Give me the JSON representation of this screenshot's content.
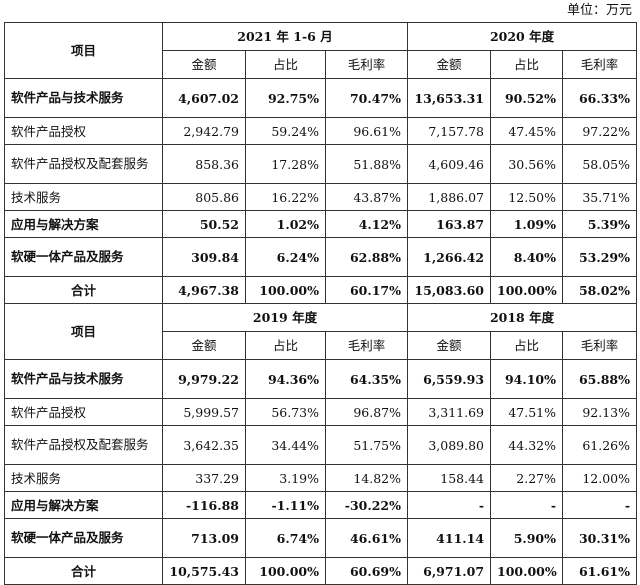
{
  "unit_note": "单位：万元",
  "header_item": "项目",
  "col_labels": [
    "金额",
    "占比",
    "毛利率"
  ],
  "sections": [
    {
      "periods": [
        "2021 年 1-6 月",
        "2020 年度"
      ],
      "rows": [
        {
          "label": "软件产品与技术服务",
          "bold": true,
          "values": [
            "4,607.02",
            "92.75%",
            "70.47%",
            "13,653.31",
            "90.52%",
            "66.33%"
          ]
        },
        {
          "label": "软件产品授权",
          "bold": false,
          "values": [
            "2,942.79",
            "59.24%",
            "96.61%",
            "7,157.78",
            "47.45%",
            "97.22%"
          ]
        },
        {
          "label": "软件产品授权及配套服务",
          "bold": false,
          "values": [
            "858.36",
            "17.28%",
            "51.88%",
            "4,609.46",
            "30.56%",
            "58.05%"
          ]
        },
        {
          "label": "技术服务",
          "bold": false,
          "values": [
            "805.86",
            "16.22%",
            "43.87%",
            "1,886.07",
            "12.50%",
            "35.71%"
          ]
        },
        {
          "label": "应用与解决方案",
          "bold": true,
          "values": [
            "50.52",
            "1.02%",
            "4.12%",
            "163.87",
            "1.09%",
            "5.39%"
          ]
        },
        {
          "label": "软硬一体产品及服务",
          "bold": true,
          "values": [
            "309.84",
            "6.24%",
            "62.88%",
            "1,266.42",
            "8.40%",
            "53.29%"
          ]
        },
        {
          "label": "合计",
          "bold": true,
          "values": [
            "4,967.38",
            "100.00%",
            "60.17%",
            "15,083.60",
            "100.00%",
            "58.02%"
          ]
        }
      ]
    },
    {
      "periods": [
        "2019 年度",
        "2018 年度"
      ],
      "rows": [
        {
          "label": "软件产品与技术服务",
          "bold": true,
          "values": [
            "9,979.22",
            "94.36%",
            "64.35%",
            "6,559.93",
            "94.10%",
            "65.88%"
          ]
        },
        {
          "label": "软件产品授权",
          "bold": false,
          "values": [
            "5,999.57",
            "56.73%",
            "96.87%",
            "3,311.69",
            "47.51%",
            "92.13%"
          ]
        },
        {
          "label": "软件产品授权及配套服务",
          "bold": false,
          "values": [
            "3,642.35",
            "34.44%",
            "51.75%",
            "3,089.80",
            "44.32%",
            "61.26%"
          ]
        },
        {
          "label": "技术服务",
          "bold": false,
          "values": [
            "337.29",
            "3.19%",
            "14.82%",
            "158.44",
            "2.27%",
            "12.00%"
          ]
        },
        {
          "label": "应用与解决方案",
          "bold": true,
          "values": [
            "-116.88",
            "-1.11%",
            "-30.22%",
            "-",
            "-",
            "-"
          ]
        },
        {
          "label": "软硬一体产品及服务",
          "bold": true,
          "values": [
            "713.09",
            "6.74%",
            "46.61%",
            "411.14",
            "5.90%",
            "30.31%"
          ]
        },
        {
          "label": "合计",
          "bold": true,
          "values": [
            "10,575.43",
            "100.00%",
            "60.69%",
            "6,971.07",
            "100.00%",
            "61.61%"
          ]
        }
      ]
    }
  ]
}
